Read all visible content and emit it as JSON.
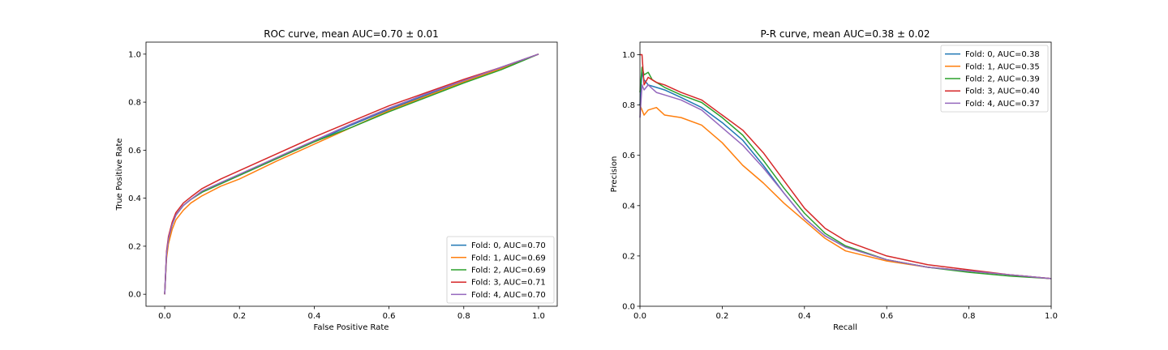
{
  "chart_data": [
    {
      "type": "line",
      "title": "ROC curve, mean AUC=0.70 ± 0.01",
      "xlabel": "False Positive Rate",
      "ylabel": "True Positive Rate",
      "xlim": [
        -0.05,
        1.05
      ],
      "ylim": [
        -0.05,
        1.05
      ],
      "xticks": [
        "0.0",
        "0.2",
        "0.4",
        "0.6",
        "0.8",
        "1.0"
      ],
      "yticks": [
        "0.0",
        "0.2",
        "0.4",
        "0.6",
        "0.8",
        "1.0"
      ],
      "grid": false,
      "legend_position": "lower right",
      "series": [
        {
          "name": "Fold: 0, AUC=0.70",
          "color": "#1f77b4",
          "x": [
            0,
            0.005,
            0.01,
            0.02,
            0.03,
            0.05,
            0.07,
            0.1,
            0.15,
            0.2,
            0.3,
            0.4,
            0.5,
            0.6,
            0.7,
            0.8,
            0.9,
            1.0
          ],
          "y": [
            0,
            0.17,
            0.23,
            0.29,
            0.33,
            0.37,
            0.395,
            0.425,
            0.46,
            0.495,
            0.565,
            0.635,
            0.705,
            0.77,
            0.83,
            0.89,
            0.945,
            1.0
          ]
        },
        {
          "name": "Fold: 1, AUC=0.69",
          "color": "#ff7f0e",
          "x": [
            0,
            0.005,
            0.01,
            0.02,
            0.03,
            0.05,
            0.07,
            0.1,
            0.15,
            0.2,
            0.3,
            0.4,
            0.5,
            0.6,
            0.7,
            0.8,
            0.9,
            1.0
          ],
          "y": [
            0,
            0.15,
            0.21,
            0.27,
            0.31,
            0.35,
            0.38,
            0.41,
            0.45,
            0.48,
            0.555,
            0.625,
            0.695,
            0.765,
            0.825,
            0.885,
            0.94,
            1.0
          ]
        },
        {
          "name": "Fold: 2, AUC=0.69",
          "color": "#2ca02c",
          "x": [
            0,
            0.005,
            0.01,
            0.02,
            0.03,
            0.05,
            0.07,
            0.1,
            0.15,
            0.2,
            0.3,
            0.4,
            0.5,
            0.6,
            0.7,
            0.8,
            0.9,
            1.0
          ],
          "y": [
            0,
            0.17,
            0.23,
            0.29,
            0.33,
            0.37,
            0.395,
            0.425,
            0.46,
            0.495,
            0.565,
            0.635,
            0.695,
            0.76,
            0.82,
            0.88,
            0.935,
            1.0
          ]
        },
        {
          "name": "Fold: 3, AUC=0.71",
          "color": "#d62728",
          "x": [
            0,
            0.005,
            0.01,
            0.02,
            0.03,
            0.05,
            0.07,
            0.1,
            0.15,
            0.2,
            0.3,
            0.4,
            0.5,
            0.6,
            0.7,
            0.8,
            0.9,
            1.0
          ],
          "y": [
            0,
            0.18,
            0.24,
            0.3,
            0.34,
            0.38,
            0.405,
            0.44,
            0.48,
            0.515,
            0.585,
            0.655,
            0.72,
            0.785,
            0.84,
            0.895,
            0.945,
            1.0
          ]
        },
        {
          "name": "Fold: 4, AUC=0.70",
          "color": "#9467bd",
          "x": [
            0,
            0.005,
            0.01,
            0.02,
            0.03,
            0.05,
            0.07,
            0.1,
            0.15,
            0.2,
            0.3,
            0.4,
            0.5,
            0.6,
            0.7,
            0.8,
            0.9,
            1.0
          ],
          "y": [
            0,
            0.17,
            0.23,
            0.29,
            0.33,
            0.37,
            0.395,
            0.43,
            0.465,
            0.5,
            0.57,
            0.64,
            0.71,
            0.775,
            0.835,
            0.89,
            0.945,
            1.0
          ]
        }
      ]
    },
    {
      "type": "line",
      "title": "P-R curve, mean AUC=0.38 ± 0.02",
      "xlabel": "Recall",
      "ylabel": "Precision",
      "xlim": [
        0.0,
        1.0
      ],
      "ylim": [
        0.0,
        1.05
      ],
      "xticks": [
        "0.0",
        "0.2",
        "0.4",
        "0.6",
        "0.8",
        "1.0"
      ],
      "yticks": [
        "0.0",
        "0.2",
        "0.4",
        "0.6",
        "0.8",
        "1.0"
      ],
      "grid": false,
      "legend_position": "upper right",
      "series": [
        {
          "name": "Fold: 0, AUC=0.38",
          "color": "#1f77b4",
          "x": [
            0.0,
            0.005,
            0.01,
            0.02,
            0.04,
            0.06,
            0.1,
            0.15,
            0.2,
            0.25,
            0.3,
            0.35,
            0.4,
            0.45,
            0.5,
            0.6,
            0.7,
            0.8,
            0.9,
            1.0
          ],
          "y": [
            0.8,
            0.93,
            0.9,
            0.88,
            0.87,
            0.86,
            0.83,
            0.79,
            0.73,
            0.66,
            0.56,
            0.45,
            0.35,
            0.28,
            0.235,
            0.185,
            0.155,
            0.14,
            0.125,
            0.11
          ]
        },
        {
          "name": "Fold: 1, AUC=0.35",
          "color": "#ff7f0e",
          "x": [
            0.0,
            0.005,
            0.01,
            0.02,
            0.04,
            0.06,
            0.1,
            0.15,
            0.2,
            0.25,
            0.3,
            0.35,
            0.4,
            0.45,
            0.5,
            0.6,
            0.7,
            0.8,
            0.9,
            1.0
          ],
          "y": [
            0.8,
            0.78,
            0.76,
            0.78,
            0.79,
            0.76,
            0.75,
            0.72,
            0.65,
            0.56,
            0.49,
            0.41,
            0.34,
            0.27,
            0.22,
            0.18,
            0.155,
            0.14,
            0.125,
            0.11
          ]
        },
        {
          "name": "Fold: 2, AUC=0.39",
          "color": "#2ca02c",
          "x": [
            0.0,
            0.005,
            0.01,
            0.02,
            0.03,
            0.06,
            0.1,
            0.15,
            0.2,
            0.25,
            0.3,
            0.35,
            0.4,
            0.45,
            0.5,
            0.6,
            0.7,
            0.8,
            0.9,
            1.0
          ],
          "y": [
            0.85,
            0.95,
            0.92,
            0.93,
            0.9,
            0.87,
            0.84,
            0.81,
            0.75,
            0.68,
            0.58,
            0.47,
            0.37,
            0.29,
            0.24,
            0.185,
            0.155,
            0.135,
            0.12,
            0.11
          ]
        },
        {
          "name": "Fold: 3, AUC=0.40",
          "color": "#d62728",
          "x": [
            0.0,
            0.005,
            0.01,
            0.02,
            0.04,
            0.06,
            0.1,
            0.15,
            0.2,
            0.25,
            0.3,
            0.35,
            0.4,
            0.45,
            0.5,
            0.6,
            0.7,
            0.8,
            0.9,
            1.0
          ],
          "y": [
            1.0,
            1.0,
            0.88,
            0.91,
            0.89,
            0.88,
            0.85,
            0.82,
            0.76,
            0.7,
            0.61,
            0.5,
            0.39,
            0.31,
            0.26,
            0.2,
            0.165,
            0.145,
            0.125,
            0.11
          ]
        },
        {
          "name": "Fold: 4, AUC=0.37",
          "color": "#9467bd",
          "x": [
            0.0,
            0.005,
            0.01,
            0.02,
            0.04,
            0.06,
            0.1,
            0.15,
            0.2,
            0.25,
            0.3,
            0.35,
            0.4,
            0.45,
            0.5,
            0.6,
            0.7,
            0.8,
            0.9,
            1.0
          ],
          "y": [
            0.75,
            0.88,
            0.86,
            0.88,
            0.85,
            0.84,
            0.82,
            0.78,
            0.71,
            0.64,
            0.55,
            0.45,
            0.35,
            0.28,
            0.235,
            0.185,
            0.155,
            0.14,
            0.125,
            0.11
          ]
        }
      ]
    }
  ]
}
